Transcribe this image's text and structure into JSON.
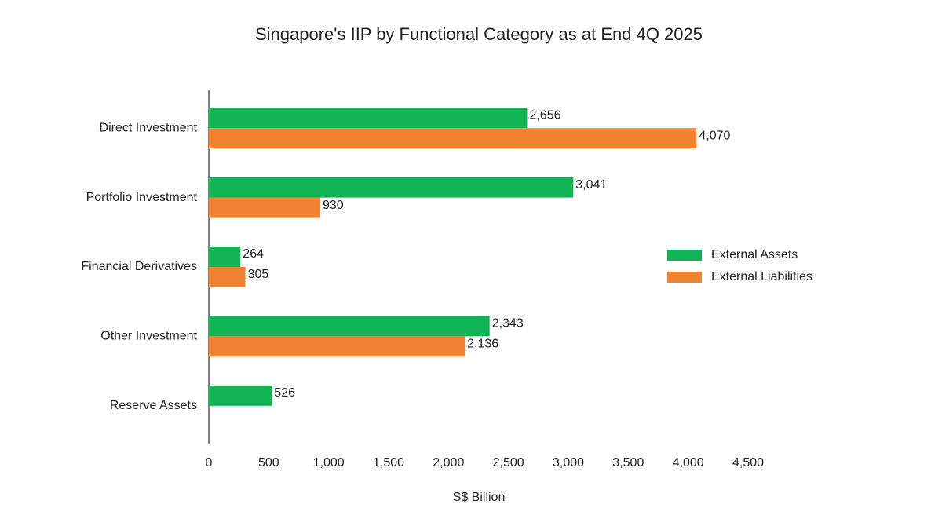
{
  "chart_data": {
    "type": "bar",
    "orientation": "horizontal",
    "title": "Singapore's IIP by Functional Category as at End 4Q 2025",
    "x_label": "S$ Billion",
    "categories": [
      "Direct Investment",
      "Portfolio Investment",
      "Financial Derivatives",
      "Other Investment",
      "Reserve Assets"
    ],
    "series": [
      {
        "name": "External Assets",
        "color": "#10b455",
        "values": [
          2656,
          3041,
          264,
          2343,
          526
        ],
        "value_labels": [
          "2,656",
          "3,041",
          "264",
          "2,343",
          "526"
        ]
      },
      {
        "name": "External Liabilities",
        "color": "#ef8332",
        "values": [
          4070,
          930,
          305,
          2136,
          null
        ],
        "value_labels": [
          "4,070",
          "930",
          "305",
          "2,136",
          null
        ]
      }
    ],
    "xlim": [
      0,
      4500
    ],
    "xticks": [
      0,
      500,
      {
        "value": 1000,
        "label": "1,000"
      },
      {
        "value": 1500,
        "label": "1,500"
      },
      {
        "value": 2000,
        "label": "2,000"
      },
      {
        "value": 2500,
        "label": "2,500"
      },
      {
        "value": 3000,
        "label": "3,000"
      },
      {
        "value": 3500,
        "label": "3,500"
      },
      {
        "value": 4000,
        "label": "4,000"
      },
      {
        "value": 4500,
        "label": "4,500"
      }
    ],
    "grid": false,
    "legend_position": "right"
  }
}
